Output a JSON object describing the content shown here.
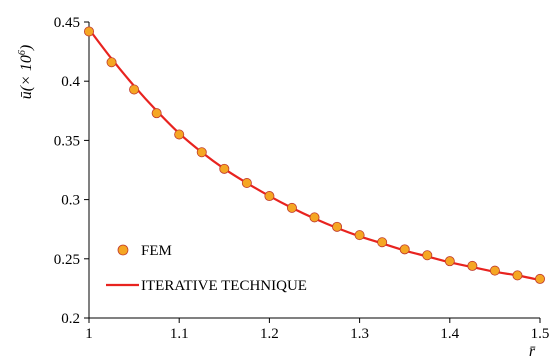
{
  "chart_data": {
    "type": "scatter",
    "title": "",
    "xlabel": "r̄",
    "ylabel": {
      "base": "ū(× 10",
      "exp": "6",
      "close": ")"
    },
    "xlim": [
      1,
      1.5
    ],
    "ylim": [
      0.2,
      0.45
    ],
    "x_ticks": [
      1,
      1.1,
      1.2,
      1.3,
      1.4,
      1.5
    ],
    "x_tick_labels": [
      "1",
      "1.1",
      "1.2",
      "1.3",
      "1.4",
      "1.5"
    ],
    "y_ticks": [
      0.2,
      0.25,
      0.3,
      0.35,
      0.4,
      0.45
    ],
    "y_tick_labels": [
      "0.2",
      "0.25",
      "0.3",
      "0.35",
      "0.4",
      "0.45"
    ],
    "grid": false,
    "legend_position": "bottom-left",
    "series": [
      {
        "name": "FEM",
        "kind": "markers",
        "color": "#F5A623",
        "edge_color": "#C0392B",
        "x": [
          1.0,
          1.025,
          1.05,
          1.075,
          1.1,
          1.125,
          1.15,
          1.175,
          1.2,
          1.225,
          1.25,
          1.275,
          1.3,
          1.325,
          1.35,
          1.375,
          1.4,
          1.425,
          1.45,
          1.475,
          1.5
        ],
        "y": [
          0.442,
          0.416,
          0.393,
          0.373,
          0.355,
          0.34,
          0.326,
          0.314,
          0.303,
          0.293,
          0.285,
          0.277,
          0.27,
          0.264,
          0.258,
          0.253,
          0.248,
          0.244,
          0.24,
          0.236,
          0.233
        ]
      },
      {
        "name": "ITERATIVE TECHNIQUE",
        "kind": "line",
        "color": "#E8231F",
        "x": [
          1.0,
          1.025,
          1.05,
          1.075,
          1.1,
          1.125,
          1.15,
          1.175,
          1.2,
          1.225,
          1.25,
          1.275,
          1.3,
          1.325,
          1.35,
          1.375,
          1.4,
          1.425,
          1.45,
          1.475,
          1.5
        ],
        "y": [
          0.444,
          0.419,
          0.396,
          0.375,
          0.356,
          0.34,
          0.326,
          0.314,
          0.303,
          0.293,
          0.284,
          0.276,
          0.269,
          0.263,
          0.257,
          0.252,
          0.247,
          0.243,
          0.239,
          0.236,
          0.232
        ]
      }
    ]
  }
}
